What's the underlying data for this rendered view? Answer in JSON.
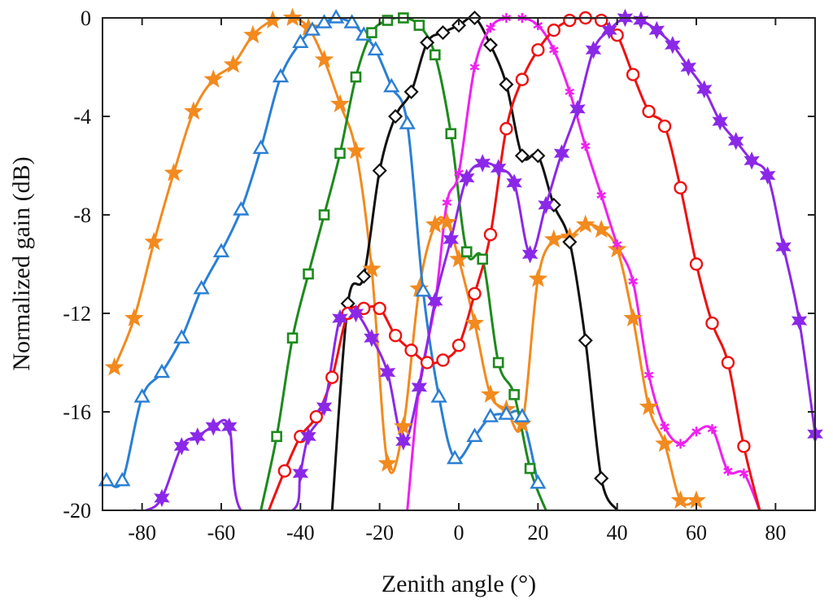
{
  "chart_data": {
    "type": "line",
    "title": "",
    "xlabel": "Zenith angle (°)",
    "ylabel": "Normalized gain (dB)",
    "xlim": [
      -90,
      90
    ],
    "ylim": [
      -20,
      0
    ],
    "xticks": [
      -80,
      -60,
      -40,
      -20,
      0,
      20,
      40,
      60,
      80
    ],
    "yticks": [
      0,
      -4,
      -8,
      -12,
      -16,
      -20
    ],
    "grid": false,
    "legend": "none",
    "series": [
      {
        "color": "#f28a1e",
        "marker": "star",
        "x": [
          -87,
          -82,
          -77,
          -72,
          -67,
          -62,
          -57,
          -52,
          -47,
          -42,
          -38,
          -34,
          -30,
          -26,
          -22,
          -18,
          -14,
          -10,
          -6,
          -3,
          0,
          4,
          8,
          12,
          16,
          20,
          24,
          28,
          32,
          36,
          40,
          44,
          48,
          52,
          56,
          60
        ],
        "y": [
          -14.2,
          -12.2,
          -9.1,
          -6.3,
          -3.8,
          -2.5,
          -1.9,
          -0.7,
          -0.1,
          0.0,
          -0.4,
          -1.7,
          -3.5,
          -5.4,
          -10.2,
          -18.1,
          -16.6,
          -11.0,
          -8.4,
          -8.3,
          -9.8,
          -12.4,
          -15.3,
          -15.9,
          -16.5,
          -10.6,
          -9.0,
          -8.9,
          -8.4,
          -8.6,
          -9.4,
          -12.2,
          -15.8,
          -17.3,
          -19.6,
          -19.6
        ]
      },
      {
        "color": "#2a7fd4",
        "marker": "triangle",
        "x": [
          -89,
          -85,
          -80,
          -75,
          -70,
          -65,
          -60,
          -55,
          -50,
          -45,
          -40,
          -37,
          -34,
          -31,
          -27,
          -24,
          -21,
          -17,
          -13,
          -9,
          -5,
          -1,
          4,
          8,
          12,
          16,
          20
        ],
        "y": [
          -18.8,
          -18.8,
          -15.4,
          -14.4,
          -13.0,
          -11.0,
          -9.5,
          -7.8,
          -5.3,
          -2.4,
          -1.0,
          -0.5,
          -0.2,
          0.0,
          -0.2,
          -0.7,
          -1.3,
          -2.8,
          -4.3,
          -11.1,
          -15.4,
          -17.9,
          -17.0,
          -16.2,
          -16.1,
          -16.2,
          -18.9
        ]
      },
      {
        "color": "#1d8a1d",
        "marker": "square",
        "x": [
          -50,
          -46,
          -42,
          -38,
          -34,
          -30,
          -26,
          -22,
          -18,
          -14,
          -10,
          -6,
          -2,
          2,
          6,
          10,
          14,
          18,
          22
        ],
        "y": [
          -20.0,
          -17.0,
          -13.0,
          -10.4,
          -8.0,
          -5.5,
          -2.4,
          -0.6,
          -0.1,
          0.0,
          -0.3,
          -1.5,
          -4.7,
          -9.5,
          -9.8,
          -14.0,
          -15.3,
          -18.3,
          -20.0
        ]
      },
      {
        "color": "#111111",
        "marker": "diamond",
        "x": [
          -32,
          -28,
          -24,
          -20,
          -16,
          -12,
          -8,
          -4,
          0,
          4,
          8,
          12,
          16,
          20,
          24,
          28,
          32,
          36,
          40
        ],
        "y": [
          -20.0,
          -11.6,
          -10.5,
          -6.2,
          -4.0,
          -3.0,
          -1.0,
          -0.6,
          -0.3,
          0.0,
          -1.1,
          -2.7,
          -5.6,
          -5.6,
          -7.6,
          -9.1,
          -13.1,
          -18.7,
          -20.0
        ]
      },
      {
        "color": "#f020f0",
        "marker": "asterisk",
        "x": [
          -13,
          -10,
          -6,
          -3,
          0,
          4,
          8,
          12,
          16,
          20,
          24,
          28,
          32,
          36,
          40,
          44,
          48,
          52,
          56,
          60,
          64,
          68,
          72,
          76
        ],
        "y": [
          -20.0,
          -15.0,
          -11.6,
          -7.5,
          -6.3,
          -2.0,
          -0.4,
          0.0,
          0.0,
          -0.3,
          -1.3,
          -3.0,
          -5.2,
          -7.2,
          -9.2,
          -10.7,
          -14.5,
          -16.6,
          -17.3,
          -16.8,
          -16.7,
          -18.4,
          -18.5,
          -20.0
        ]
      },
      {
        "color": "#ee1111",
        "marker": "circle",
        "x": [
          -48,
          -44,
          -40,
          -36,
          -32,
          -28,
          -24,
          -20,
          -16,
          -12,
          -8,
          -4,
          0,
          4,
          8,
          12,
          16,
          20,
          24,
          28,
          32,
          36,
          40,
          44,
          48,
          52,
          56,
          60,
          64,
          68,
          72,
          76
        ],
        "y": [
          -20.0,
          -18.4,
          -17.0,
          -16.2,
          -14.6,
          -12.0,
          -11.8,
          -11.8,
          -12.9,
          -13.5,
          -14.0,
          -13.9,
          -13.3,
          -11.2,
          -8.8,
          -4.5,
          -2.5,
          -1.3,
          -0.5,
          -0.1,
          0.0,
          -0.1,
          -0.7,
          -2.3,
          -3.8,
          -4.4,
          -6.9,
          -10.0,
          -12.4,
          -14.0,
          -17.4,
          -20.0
        ]
      },
      {
        "color": "#8b28e8",
        "marker": "hexstar",
        "x": [
          -82,
          -79,
          -75,
          -70,
          -66,
          -62,
          -58,
          -55,
          -42,
          -40,
          -38,
          -34,
          -30,
          -26,
          -22,
          -18,
          -14,
          -10,
          -6,
          -2,
          2,
          6,
          10,
          14,
          18,
          22,
          26,
          30,
          34,
          38,
          42,
          46,
          50,
          54,
          58,
          62,
          66,
          70,
          74,
          78,
          82,
          86,
          90
        ],
        "y": [
          -20.0,
          -20.0,
          -19.5,
          -17.4,
          -17.0,
          -16.6,
          -16.6,
          -20.0,
          -20.0,
          -18.5,
          -17.0,
          -15.8,
          -12.2,
          -12.0,
          -13.0,
          -14.4,
          -17.2,
          -15.0,
          -11.5,
          -9.0,
          -6.5,
          -5.9,
          -6.1,
          -6.7,
          -9.6,
          -7.6,
          -5.5,
          -3.7,
          -1.3,
          -0.5,
          0.0,
          -0.1,
          -0.5,
          -1.1,
          -2.0,
          -2.9,
          -4.2,
          -5.0,
          -5.8,
          -6.4,
          -9.3,
          -12.3,
          -16.9
        ]
      }
    ]
  }
}
